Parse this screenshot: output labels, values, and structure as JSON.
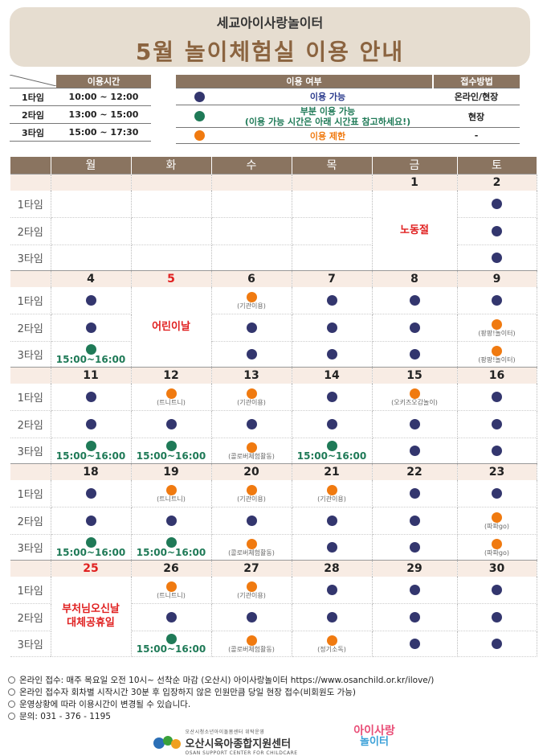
{
  "header": {
    "subtitle": "세교아이사랑놀이터",
    "title": "5월 놀이체험실 이용 안내"
  },
  "time_table": {
    "header": "이용시간",
    "rows": [
      {
        "label": "1타임",
        "time": "10:00 ~ 12:00"
      },
      {
        "label": "2타임",
        "time": "13:00 ~ 15:00"
      },
      {
        "label": "3타임",
        "time": "15:00 ~ 17:30"
      }
    ]
  },
  "legend": {
    "header_status": "이용 여부",
    "header_method": "접수방법",
    "rows": [
      {
        "color": "#33366e",
        "text": "이용 가능",
        "text2": "",
        "text_color": "#2a3a8c",
        "method": "온라인/현장"
      },
      {
        "color": "#1f7a57",
        "text": "부분 이용 가능",
        "text2": "(이용 가능 시간은 아래 시간표 참고하세요!)",
        "text_color": "#1f7a57",
        "method": "현장"
      },
      {
        "color": "#f07a10",
        "text": "이용 제한",
        "text2": "",
        "text_color": "#f07a10",
        "method": "-"
      }
    ]
  },
  "colors": {
    "available": "#33366e",
    "partial": "#1f7a57",
    "restricted": "#f07a10",
    "header_bg": "#8a7460"
  },
  "calendar": {
    "weekdays": [
      "월",
      "화",
      "수",
      "목",
      "금",
      "토"
    ],
    "slot_labels": [
      "1타임",
      "2타임",
      "3타임"
    ],
    "weeks": [
      {
        "dates": [
          "",
          "",
          "",
          "",
          "1",
          "2"
        ],
        "red": [],
        "slots": [
          [
            "",
            "",
            "",
            "",
            "H",
            "a"
          ],
          [
            "",
            "",
            "",
            "",
            "H",
            "a"
          ],
          [
            "",
            "",
            "",
            "",
            "H",
            "a"
          ]
        ],
        "holidays": [
          {
            "col": 4,
            "text": "노동절"
          }
        ],
        "notes": {}
      },
      {
        "dates": [
          "4",
          "5",
          "6",
          "7",
          "8",
          "9"
        ],
        "red": [
          1
        ],
        "slots": [
          [
            "a",
            "H",
            "r",
            "a",
            "a",
            "a"
          ],
          [
            "a",
            "H",
            "a",
            "a",
            "a",
            "r"
          ],
          [
            "p",
            "H",
            "a",
            "a",
            "a",
            "r"
          ]
        ],
        "holidays": [
          {
            "col": 1,
            "text": "어린이날"
          }
        ],
        "notes": {
          "0-2": "(기관이용)",
          "1-5": "(팡팡!놀이터)",
          "2-5": "(팡팡!놀이터)",
          "2-0": "15:00~16:00"
        }
      },
      {
        "dates": [
          "11",
          "12",
          "13",
          "14",
          "15",
          "16"
        ],
        "red": [],
        "slots": [
          [
            "a",
            "r",
            "r",
            "a",
            "r",
            "a"
          ],
          [
            "a",
            "a",
            "a",
            "a",
            "a",
            "a"
          ],
          [
            "p",
            "p",
            "r",
            "p",
            "a",
            "a"
          ]
        ],
        "holidays": [],
        "notes": {
          "0-1": "(트니트니)",
          "0-2": "(기관이용)",
          "0-4": "(오키즈오감놀이)",
          "2-2": "(콜로버체험활동)",
          "2-0": "15:00~16:00",
          "2-1": "15:00~16:00",
          "2-3": "15:00~16:00"
        }
      },
      {
        "dates": [
          "18",
          "19",
          "20",
          "21",
          "22",
          "23"
        ],
        "red": [],
        "slots": [
          [
            "a",
            "r",
            "r",
            "r",
            "a",
            "a"
          ],
          [
            "a",
            "a",
            "a",
            "a",
            "a",
            "r"
          ],
          [
            "p",
            "p",
            "r",
            "a",
            "a",
            "r"
          ]
        ],
        "holidays": [],
        "notes": {
          "0-1": "(트니트니)",
          "0-2": "(기관이용)",
          "0-3": "(기관이용)",
          "1-5": "(파파go)",
          "2-5": "(파파go)",
          "2-2": "(콜로버체험활동)",
          "2-0": "15:00~16:00",
          "2-1": "15:00~16:00"
        }
      },
      {
        "dates": [
          "25",
          "26",
          "27",
          "28",
          "29",
          "30"
        ],
        "red": [
          0
        ],
        "slots": [
          [
            "H",
            "r",
            "r",
            "a",
            "a",
            "a"
          ],
          [
            "H",
            "a",
            "a",
            "a",
            "a",
            "a"
          ],
          [
            "H",
            "p",
            "r",
            "r",
            "a",
            "a"
          ]
        ],
        "holidays": [
          {
            "col": 0,
            "text": "부처님오신날\n대체공휴일"
          }
        ],
        "notes": {
          "0-1": "(트니트니)",
          "0-2": "(기관이용)",
          "2-2": "(콜로버체험활동)",
          "2-3": "(정기소독)",
          "2-1": "15:00~16:00"
        }
      }
    ]
  },
  "footer": [
    "온라인 접수: 매주 목요일 오전 10시~ 선착순 마감 (오산시) 아이사랑놀이터 https://www.osanchild.or.kr/ilove/)",
    "온라인 접수자 회차별 시작시간 30분 후 입장하지 않은 인원만큼 당일 현장 접수(비회원도 가능)",
    "운영상황에 따라 이용시간이 변경될 수 있습니다.",
    "문의: 031 - 376 - 1195"
  ],
  "logos": {
    "center_small": "오산시청소년아이돌봄센터 위탁운영",
    "center_name": "오산시육아종합지원센터",
    "center_en": "OSAN SUPPORT CENTER FOR CHILDCARE",
    "brand_top": "아이사랑",
    "brand_bottom": "놀이터"
  }
}
